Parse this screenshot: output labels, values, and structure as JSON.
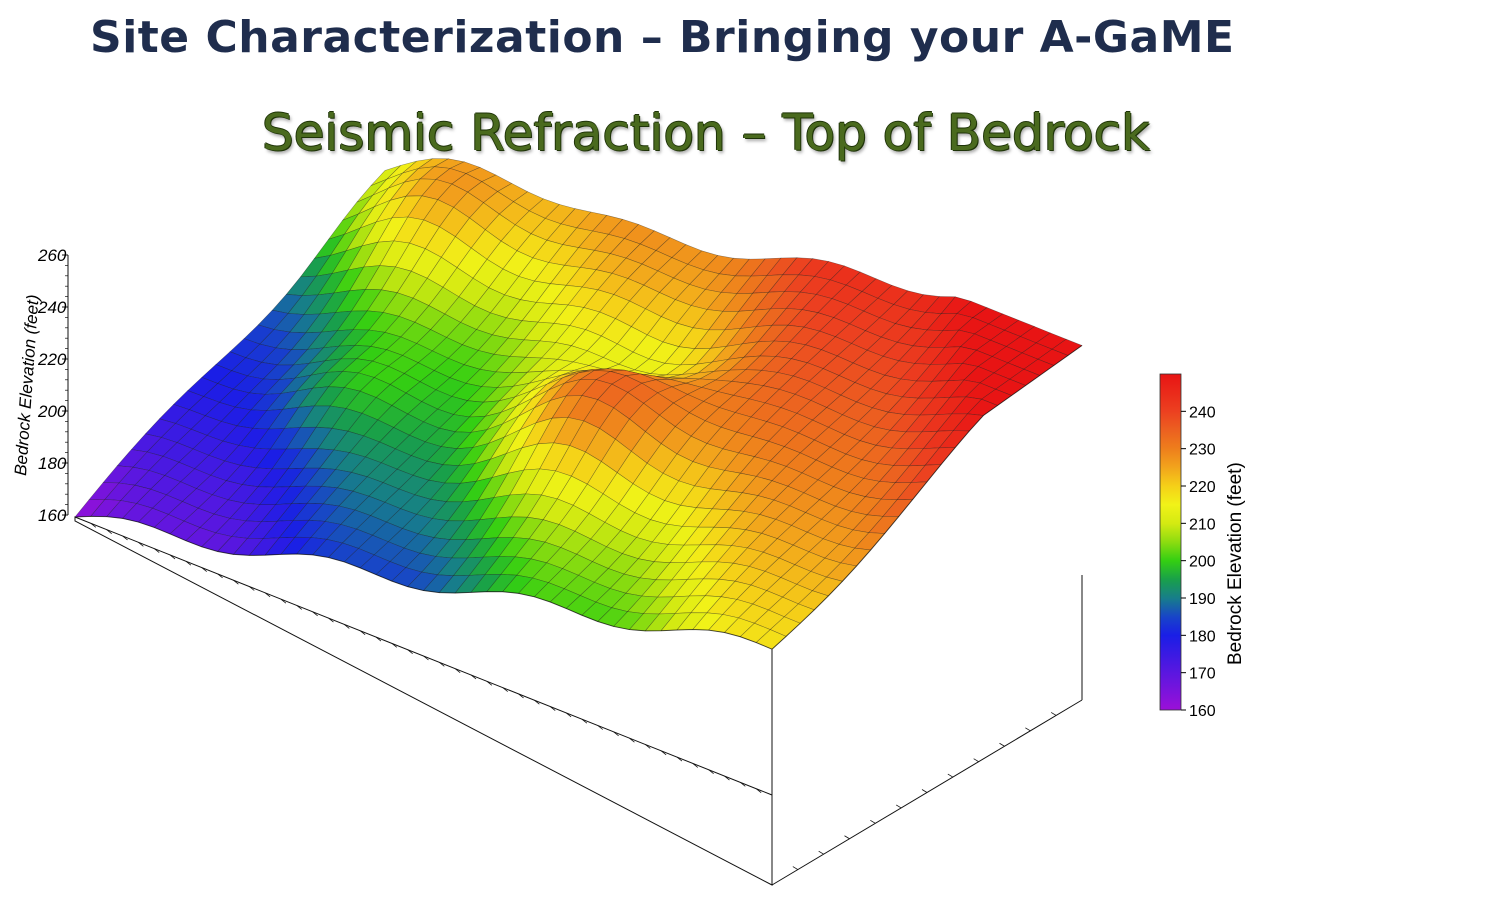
{
  "slide": {
    "title": "Site Characterization – Bringing your A-GaME",
    "subtitle": "Seismic Refraction – Top of Bedrock"
  },
  "chart_data": {
    "type": "surface3d",
    "zlabel": "Bedrock Elevation (feet)",
    "z_ticks": [
      "160",
      "180",
      "200",
      "220",
      "240",
      "260"
    ],
    "zlim": [
      160,
      260
    ],
    "colorbar": {
      "title": "Bedrock Elevation (feet)",
      "ticks": [
        "240",
        "230",
        "220",
        "210",
        "200",
        "190",
        "180",
        "170",
        "160"
      ],
      "range": [
        160,
        250
      ],
      "colors": [
        {
          "value": 160,
          "color": "#9b10d8"
        },
        {
          "value": 170,
          "color": "#5a17e0"
        },
        {
          "value": 180,
          "color": "#1a1ee6"
        },
        {
          "value": 185,
          "color": "#1845c8"
        },
        {
          "value": 190,
          "color": "#177e8a"
        },
        {
          "value": 195,
          "color": "#19a04a"
        },
        {
          "value": 200,
          "color": "#34cf12"
        },
        {
          "value": 205,
          "color": "#8ddc10"
        },
        {
          "value": 210,
          "color": "#d4ea12"
        },
        {
          "value": 215,
          "color": "#f1f218"
        },
        {
          "value": 220,
          "color": "#f5d018"
        },
        {
          "value": 225,
          "color": "#f2a41c"
        },
        {
          "value": 230,
          "color": "#ee7e1c"
        },
        {
          "value": 235,
          "color": "#ec6020"
        },
        {
          "value": 240,
          "color": "#ec4020"
        },
        {
          "value": 250,
          "color": "#e81414"
        }
      ]
    },
    "grid": true,
    "legend_position": "right"
  }
}
